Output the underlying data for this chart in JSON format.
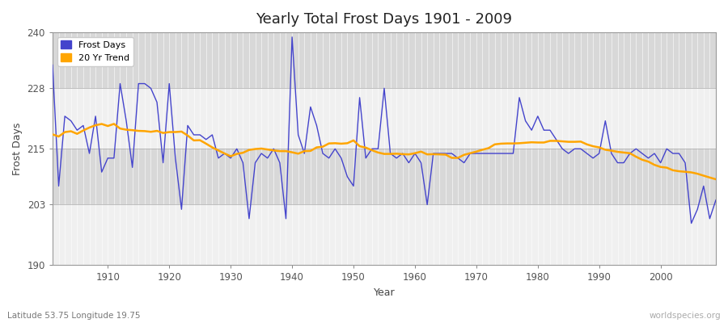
{
  "title": "Yearly Total Frost Days 1901 - 2009",
  "xlabel": "Year",
  "ylabel": "Frost Days",
  "subtitle": "Latitude 53.75 Longitude 19.75",
  "watermark": "worldspecies.org",
  "ylim": [
    190,
    240
  ],
  "yticks": [
    190,
    203,
    215,
    228,
    240
  ],
  "bg_color": "#ffffff",
  "plot_bg_color": "#e8e8e8",
  "frost_color": "#4444cc",
  "trend_color": "#ffa500",
  "legend_frost": "Frost Days",
  "legend_trend": "20 Yr Trend",
  "years": [
    1901,
    1902,
    1903,
    1904,
    1905,
    1906,
    1907,
    1908,
    1909,
    1910,
    1911,
    1912,
    1913,
    1914,
    1915,
    1916,
    1917,
    1918,
    1919,
    1920,
    1921,
    1922,
    1923,
    1924,
    1925,
    1926,
    1927,
    1928,
    1929,
    1930,
    1931,
    1932,
    1933,
    1934,
    1935,
    1936,
    1937,
    1938,
    1939,
    1940,
    1941,
    1942,
    1943,
    1944,
    1945,
    1946,
    1947,
    1948,
    1949,
    1950,
    1951,
    1952,
    1953,
    1954,
    1955,
    1956,
    1957,
    1958,
    1959,
    1960,
    1961,
    1962,
    1963,
    1964,
    1965,
    1966,
    1967,
    1968,
    1969,
    1970,
    1971,
    1972,
    1973,
    1974,
    1975,
    1976,
    1977,
    1978,
    1979,
    1980,
    1981,
    1982,
    1983,
    1984,
    1985,
    1986,
    1987,
    1988,
    1989,
    1990,
    1991,
    1992,
    1993,
    1994,
    1995,
    1996,
    1997,
    1998,
    1999,
    2000,
    2001,
    2002,
    2003,
    2004,
    2005,
    2006,
    2007,
    2008,
    2009
  ],
  "frost_days": [
    233,
    207,
    222,
    221,
    219,
    220,
    214,
    222,
    210,
    213,
    213,
    229,
    221,
    211,
    229,
    229,
    228,
    225,
    212,
    229,
    213,
    202,
    220,
    218,
    218,
    217,
    218,
    213,
    214,
    213,
    215,
    212,
    200,
    212,
    214,
    213,
    215,
    212,
    200,
    239,
    218,
    214,
    224,
    220,
    214,
    213,
    215,
    213,
    209,
    207,
    226,
    213,
    215,
    215,
    228,
    214,
    213,
    214,
    212,
    214,
    212,
    203,
    214,
    214,
    214,
    214,
    213,
    212,
    214,
    214,
    214,
    214,
    214,
    214,
    214,
    214,
    226,
    221,
    219,
    222,
    219,
    219,
    217,
    215,
    214,
    215,
    215,
    214,
    213,
    214,
    221,
    214,
    212,
    212,
    214,
    215,
    214,
    213,
    214,
    212,
    215,
    214,
    214,
    212,
    199,
    202,
    207,
    200,
    204
  ],
  "band_colors": [
    "#f0f0f0",
    "#d8d8d8"
  ]
}
